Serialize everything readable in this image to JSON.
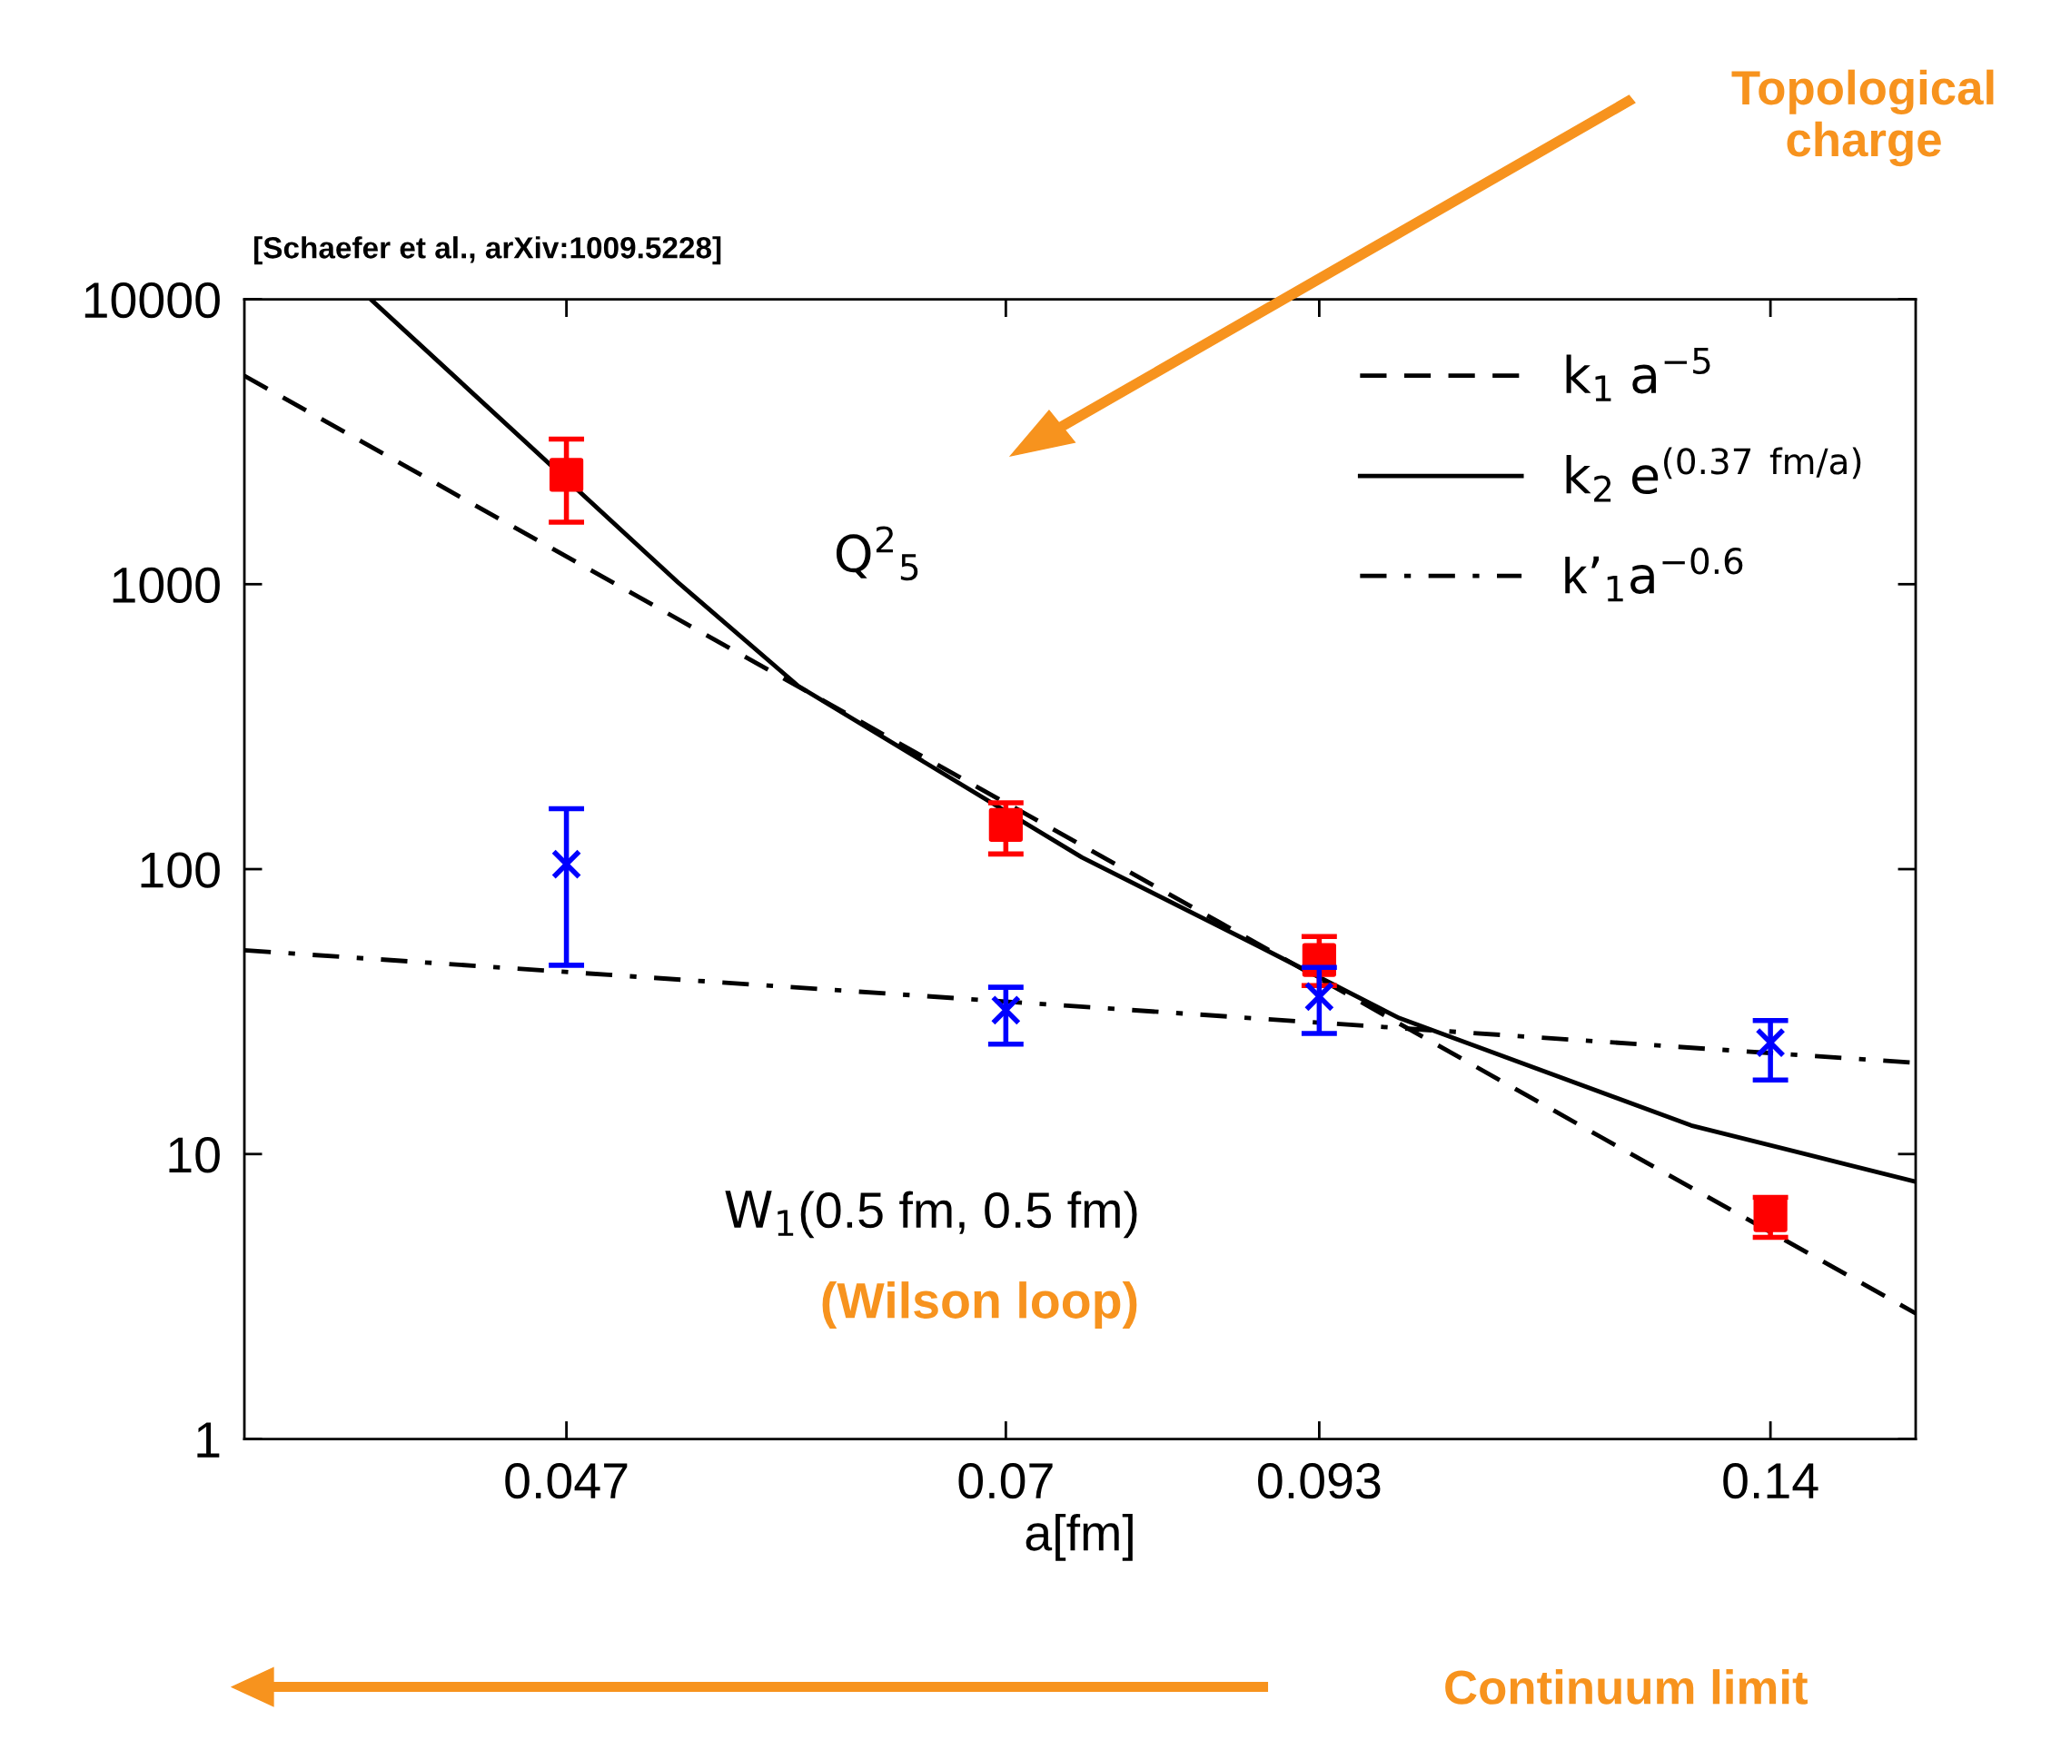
{
  "chart_data": {
    "type": "scatter",
    "log": "xy",
    "xlabel": "a[fm]",
    "xlim": [
      0.0351,
      0.1597
    ],
    "xticks": [
      0.047,
      0.07,
      0.093,
      0.14
    ],
    "ylim": [
      1,
      10000
    ],
    "yticks": [
      1,
      10,
      100,
      1000,
      10000
    ],
    "grid": false,
    "legend": "top right",
    "series": [
      {
        "color": "#ff0000",
        "marker": "square",
        "x": [
          0.047,
          0.07,
          0.093,
          0.14
        ],
        "values": [
          2420,
          143,
          48,
          6.1
        ],
        "errors": [
          [
            1650,
            3230
          ],
          [
            113,
            171
          ],
          [
            39,
            58
          ],
          [
            5.1,
            7.05
          ]
        ]
      },
      {
        "color": "#0000ff",
        "marker": "cross",
        "x": [
          0.047,
          0.07,
          0.093,
          0.14
        ],
        "values": [
          104,
          32,
          35.7,
          24.6
        ],
        "errors": [
          [
            46,
            163
          ],
          [
            24.3,
            38.5
          ],
          [
            26.5,
            45.2
          ],
          [
            18.2,
            29.4
          ]
        ]
      },
      {
        "type": "line",
        "name": "k$_{1}$ a$^{−5}$",
        "color": "#000000",
        "line_style": "dashed",
        "x": [
          0.0351,
          0.05,
          0.065,
          0.085,
          0.12,
          0.1597
        ],
        "values": [
          5390,
          918,
          247,
          64.9,
          11.5,
          2.76
        ]
      },
      {
        "type": "line",
        "name": "k$_{2}$ e$^{(0.37 fm/a)}$",
        "color": "#000000",
        "line_style": "solid",
        "x": [
          0.03936,
          0.052,
          0.058,
          0.075,
          0.088,
          0.1,
          0.1303,
          0.1597
        ],
        "values": [
          10000,
          1015,
          439,
          110,
          53.7,
          30,
          12.6,
          8.0
        ]
      },
      {
        "type": "line",
        "name": "k’$_{1}$a$^{−0.6}$",
        "color": "#000000",
        "line_style": "dashdot",
        "x": [
          0.0351,
          0.1597
        ],
        "values": [
          51.9,
          20.9
        ]
      }
    ],
    "annotations": [
      "[Schaefer et al., arXiv:1009.5228]",
      "Q$^{2}$$_{5}$",
      "W$_{1}$(0.5 fm, 0.5 fm)",
      "(Wilson loop)",
      "Topological charge",
      "Continuum limit"
    ]
  }
}
